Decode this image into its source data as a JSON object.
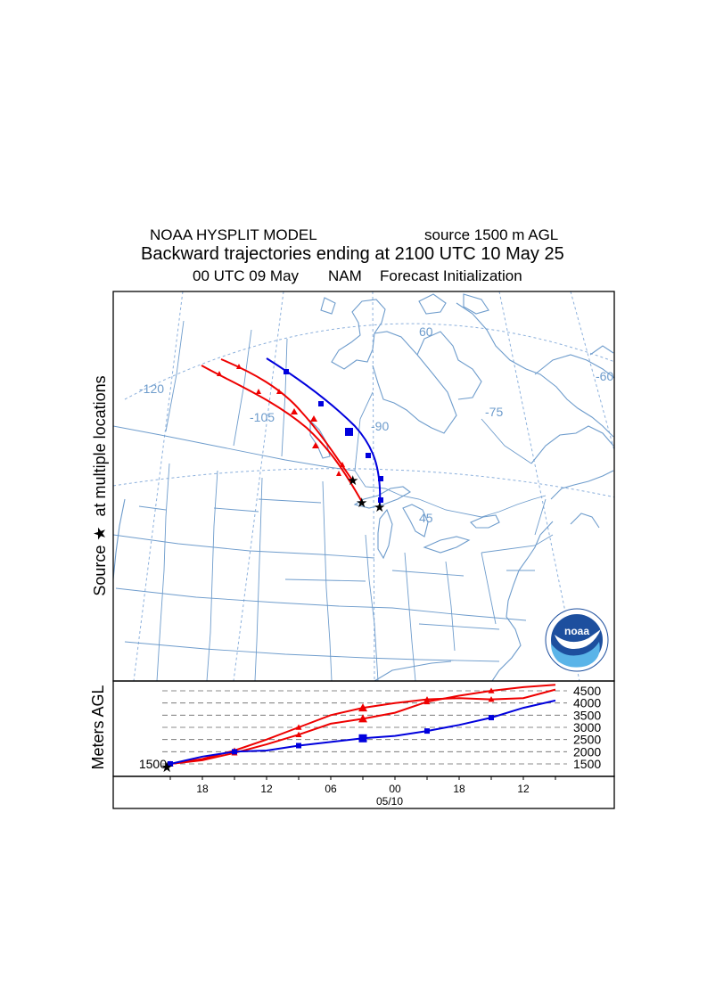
{
  "header": {
    "model": "NOAA HYSPLIT MODEL",
    "source_agl": "source 1500 m AGL",
    "title": "Backward trajectories ending at 2100 UTC 10 May 25",
    "init_time": "00 UTC 09 May",
    "met": "NAM",
    "forecast": "Forecast Initialization"
  },
  "map": {
    "side_label_source": "Source",
    "side_label_rest": "at multiple locations",
    "meridian_labels": [
      "-120",
      "-105",
      "-90",
      "-75",
      "-60"
    ],
    "parallel_labels": [
      "60",
      "45"
    ],
    "logo_text": "noaa"
  },
  "altitude_panel": {
    "ylabel": "Meters AGL",
    "source_height": "1500",
    "levels": [
      "4500",
      "4000",
      "3500",
      "3000",
      "2500",
      "2000",
      "1500"
    ],
    "time_ticks": [
      "18",
      "12",
      "06",
      "00",
      "18",
      "12"
    ],
    "date_label": "05/10"
  },
  "trajectories": [
    {
      "color": "#ee0000",
      "marker": "triangle"
    },
    {
      "color": "#ee0000",
      "marker": "triangle"
    },
    {
      "color": "#0000dd",
      "marker": "square"
    }
  ],
  "colors": {
    "map_lines": "#6e9ccc",
    "red_series": "#ee0000",
    "blue_series": "#0000dd",
    "logo_blue": "#1d4f9e"
  }
}
